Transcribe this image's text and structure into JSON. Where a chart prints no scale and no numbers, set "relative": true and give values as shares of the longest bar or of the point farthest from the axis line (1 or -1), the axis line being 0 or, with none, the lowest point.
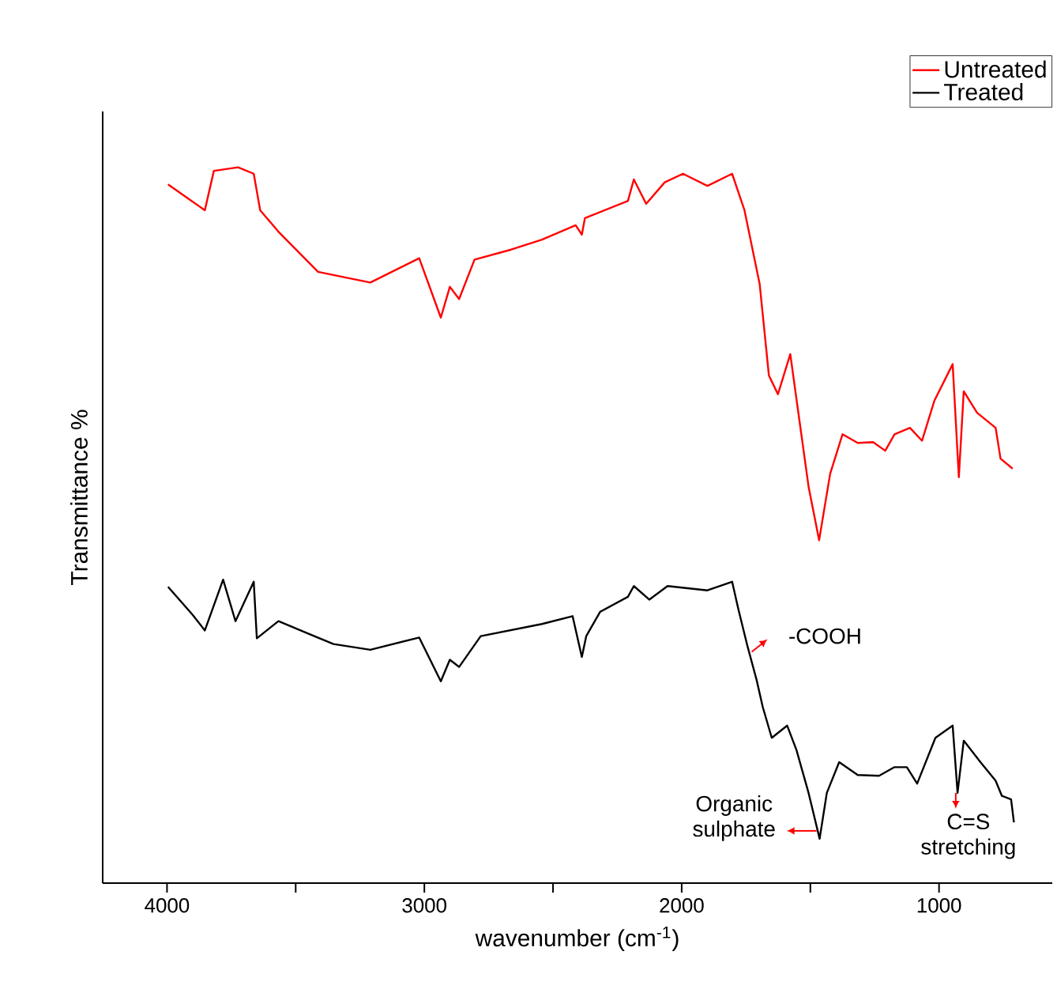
{
  "chart_data": {
    "type": "line",
    "relative": true,
    "xlabel": "wavenumber (cm$^{-1}$)",
    "ylabel": "Transmittance %",
    "xlim": [
      4250,
      560
    ],
    "xticks": [
      4000,
      {
        "value": 3500,
        "label": null
      },
      3000,
      {
        "value": 2500,
        "label": null
      },
      2000,
      {
        "value": 1500,
        "label": null
      },
      1000
    ],
    "legend": "top right",
    "line_style": "solid",
    "series": [
      {
        "name": "Untreated",
        "color": "#ff0000",
        "x": [
          3996,
          3853,
          3818,
          3724,
          3663,
          3638,
          3567,
          3413,
          3210,
          3020,
          2936,
          2901,
          2865,
          2805,
          2663,
          2543,
          2412,
          2388,
          2376,
          2209,
          2186,
          2138,
          2066,
          1995,
          1900,
          1804,
          1756,
          1697,
          1661,
          1626,
          1578,
          1542,
          1507,
          1466,
          1423,
          1375,
          1316,
          1256,
          1209,
          1173,
          1113,
          1066,
          1018,
          947,
          923,
          904,
          852,
          780,
          761,
          714
        ],
        "values": [
          0.976,
          0.94,
          0.995,
          1.0,
          0.991,
          0.94,
          0.91,
          0.854,
          0.839,
          0.873,
          0.79,
          0.833,
          0.816,
          0.871,
          0.885,
          0.899,
          0.919,
          0.906,
          0.929,
          0.953,
          0.983,
          0.949,
          0.979,
          0.991,
          0.974,
          0.991,
          0.94,
          0.837,
          0.709,
          0.683,
          0.739,
          0.645,
          0.554,
          0.479,
          0.572,
          0.627,
          0.615,
          0.616,
          0.604,
          0.627,
          0.636,
          0.618,
          0.674,
          0.725,
          0.567,
          0.687,
          0.657,
          0.636,
          0.593,
          0.579
        ]
      },
      {
        "name": "Treated",
        "color": "#000000",
        "x": [
          3996,
          3901,
          3853,
          3782,
          3734,
          3663,
          3651,
          3567,
          3448,
          3353,
          3210,
          3020,
          2936,
          2901,
          2865,
          2781,
          2543,
          2424,
          2388,
          2371,
          2317,
          2209,
          2186,
          2126,
          2055,
          1900,
          1804,
          1780,
          1745,
          1709,
          1685,
          1650,
          1590,
          1554,
          1507,
          1464,
          1436,
          1388,
          1316,
          1233,
          1173,
          1125,
          1085,
          1014,
          947,
          928,
          904,
          839,
          780,
          756,
          720,
          709
        ],
        "values": [
          0.414,
          0.375,
          0.353,
          0.424,
          0.366,
          0.421,
          0.342,
          0.366,
          0.348,
          0.334,
          0.326,
          0.343,
          0.282,
          0.312,
          0.302,
          0.345,
          0.362,
          0.373,
          0.316,
          0.345,
          0.379,
          0.4,
          0.415,
          0.396,
          0.415,
          0.409,
          0.421,
          0.383,
          0.332,
          0.284,
          0.246,
          0.203,
          0.22,
          0.186,
          0.126,
          0.062,
          0.126,
          0.169,
          0.151,
          0.15,
          0.162,
          0.162,
          0.139,
          0.203,
          0.22,
          0.126,
          0.199,
          0.169,
          0.143,
          0.122,
          0.117,
          0.085
        ]
      }
    ],
    "annotations": [
      {
        "text": "-COOH",
        "x": 1728,
        "y": 0.323
      },
      {
        "text": "Organic sulphate",
        "x": 1476,
        "y": 0.073
      },
      {
        "text": "C=S stretching",
        "x": 935,
        "y": 0.126
      }
    ]
  }
}
